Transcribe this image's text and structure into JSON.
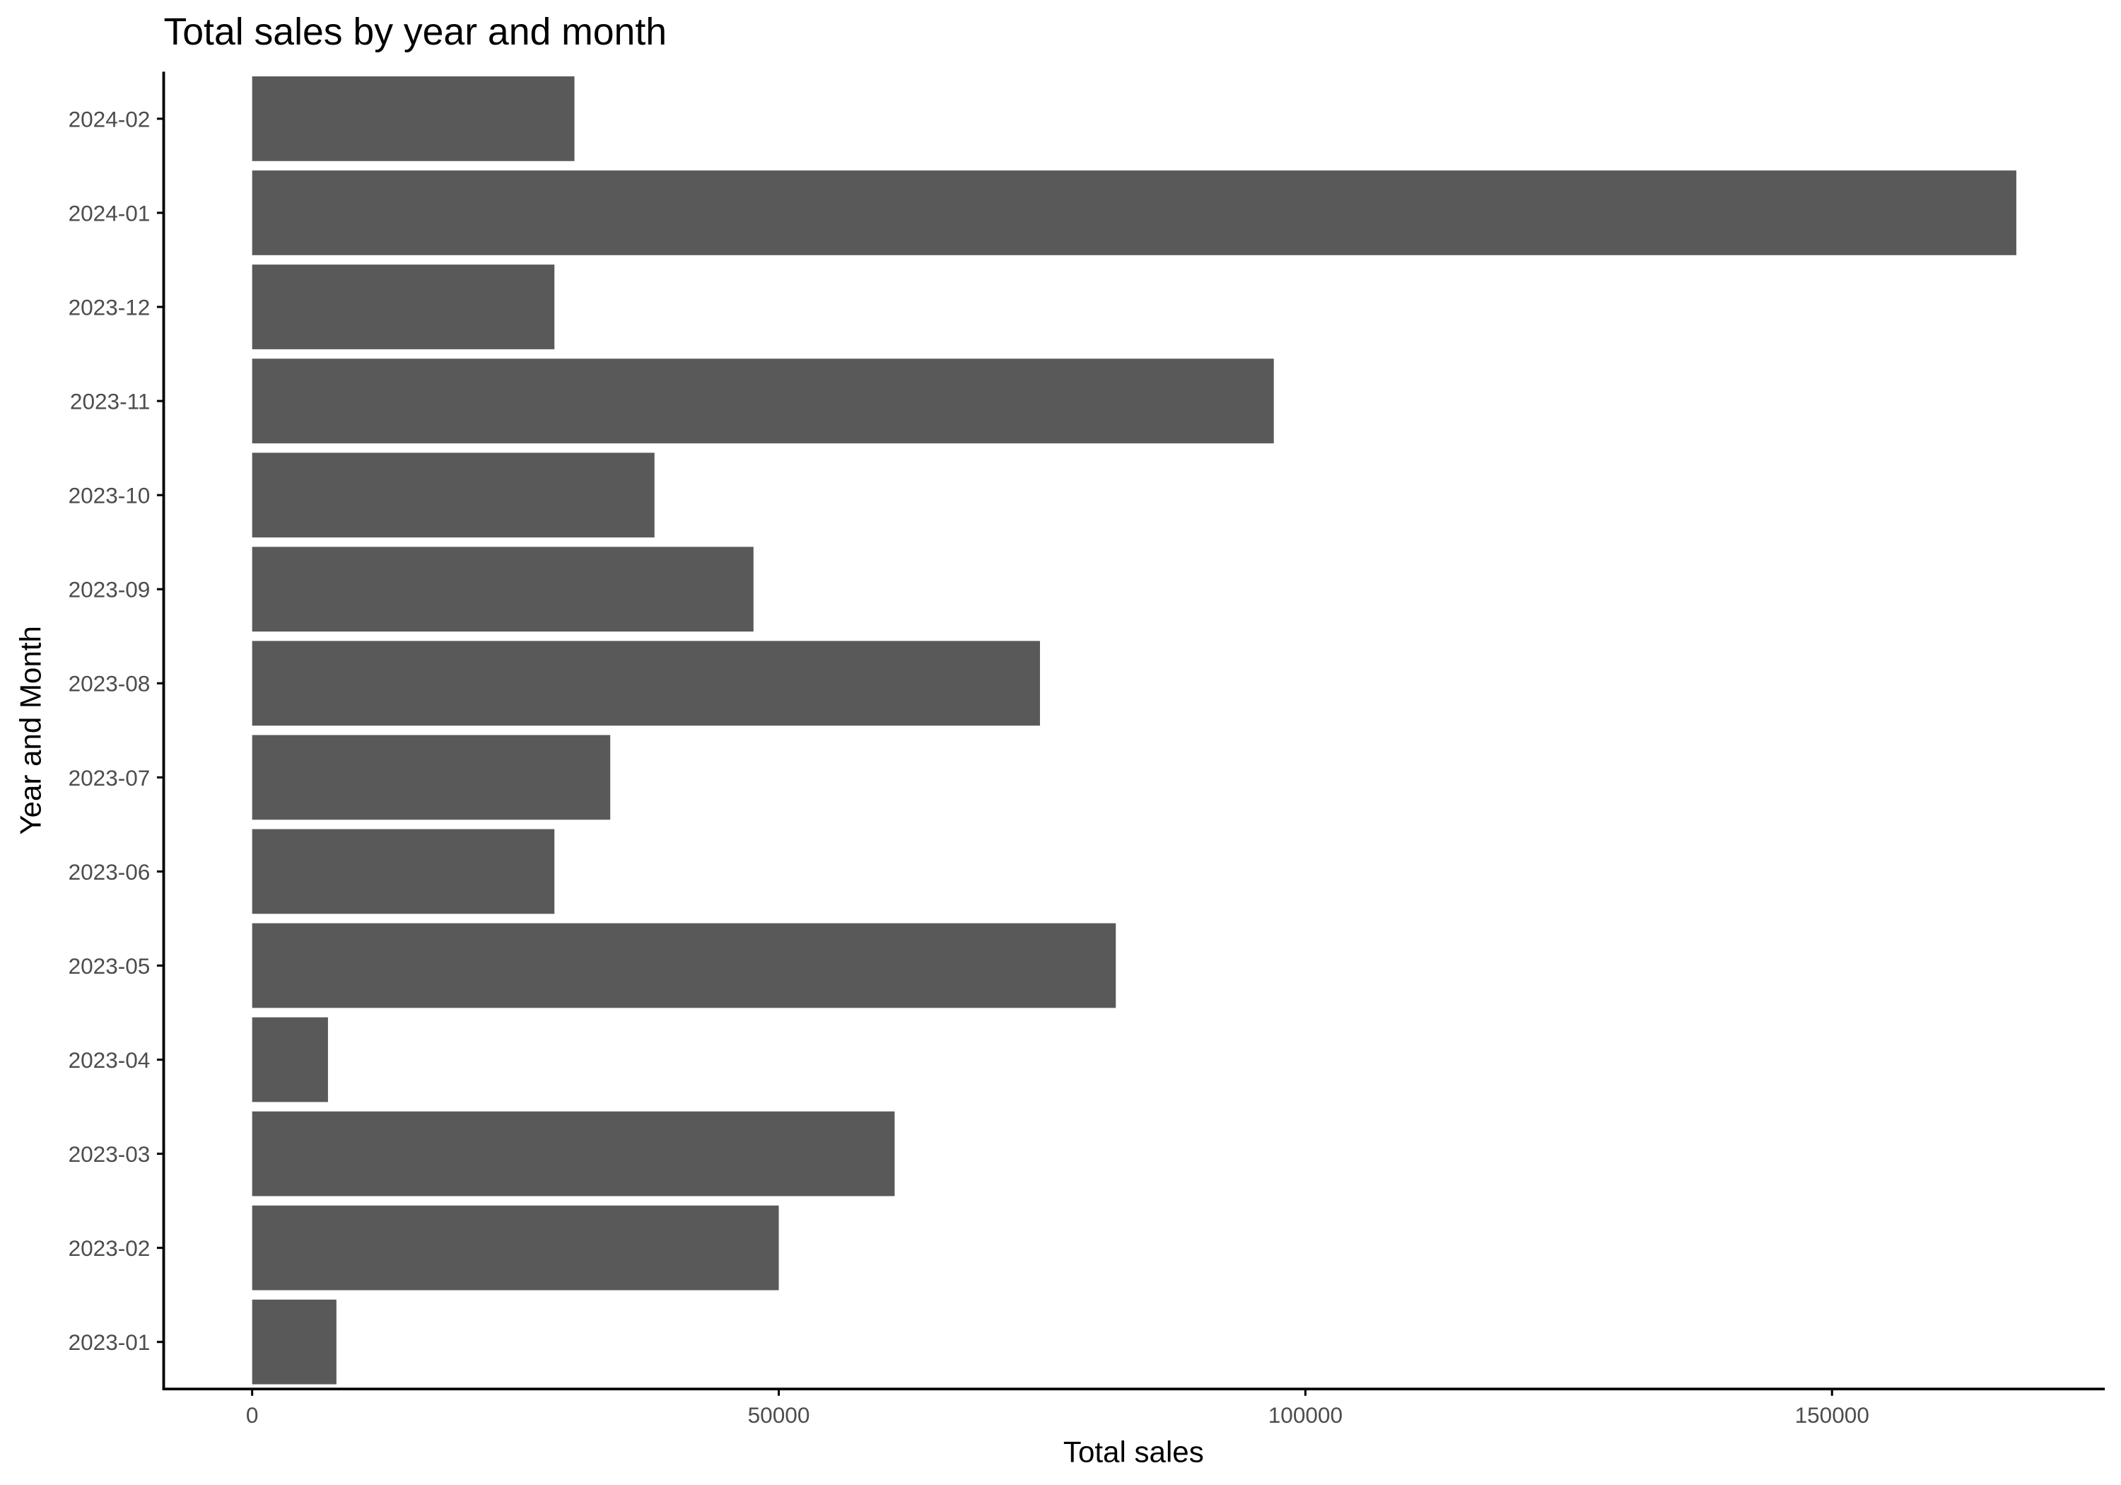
{
  "chart_data": {
    "type": "bar",
    "orientation": "horizontal",
    "title": "Total sales by year and month",
    "xlabel": "Total sales",
    "ylabel": "Year and Month",
    "categories": [
      "2023-01",
      "2023-02",
      "2023-03",
      "2023-04",
      "2023-05",
      "2023-06",
      "2023-07",
      "2023-08",
      "2023-09",
      "2023-10",
      "2023-11",
      "2023-12",
      "2024-01",
      "2024-02"
    ],
    "values": [
      8000,
      50000,
      61000,
      7200,
      82000,
      28700,
      34000,
      74800,
      47600,
      38200,
      97000,
      28700,
      167500,
      30600
    ],
    "xlim": [
      -8400,
      175900
    ],
    "xticks": [
      0,
      50000,
      100000,
      150000
    ],
    "xtick_labels": [
      "0",
      "50000",
      "100000",
      "150000"
    ],
    "bar_color": "#595959",
    "axis_color": "#000000",
    "grid": false
  }
}
